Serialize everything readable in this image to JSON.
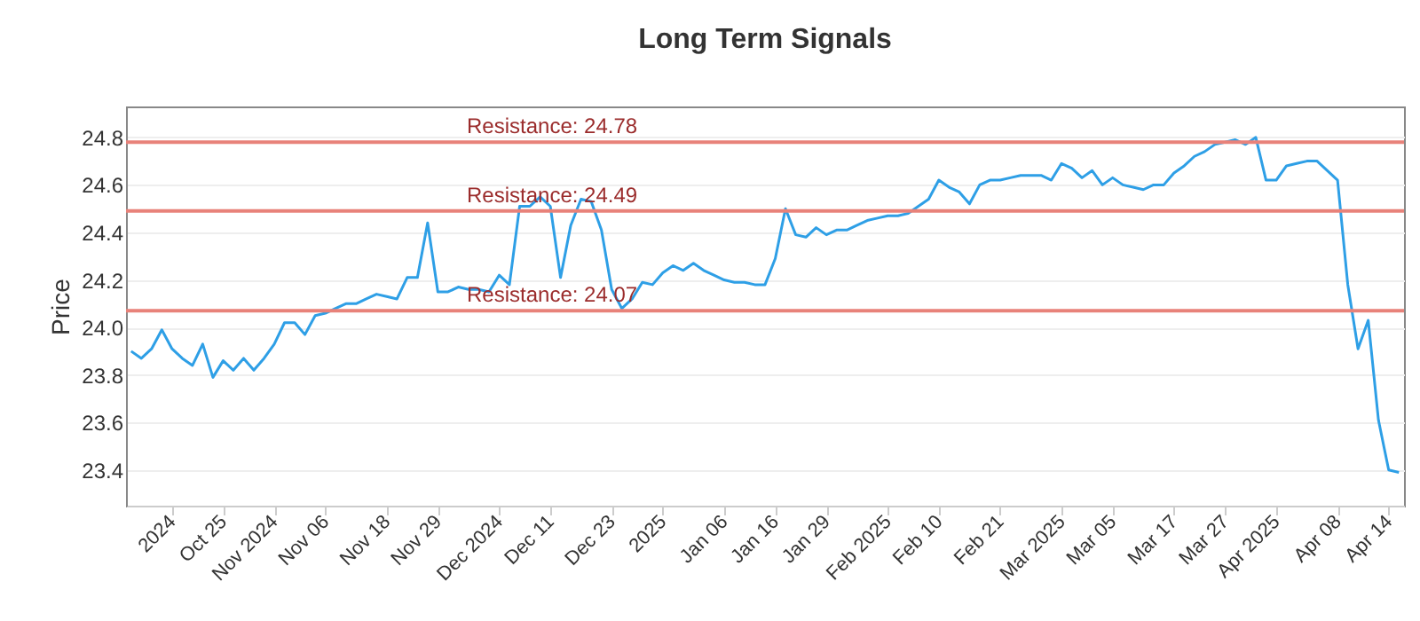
{
  "chart_data": {
    "type": "line",
    "title": "Long Term Signals",
    "ylabel": "Price",
    "categories": [
      null,
      null,
      null,
      null,
      "2024",
      null,
      null,
      null,
      null,
      "Oct 25",
      null,
      null,
      null,
      null,
      "Nov 2024",
      null,
      null,
      null,
      null,
      "Nov 06",
      null,
      null,
      null,
      null,
      null,
      "Nov 18",
      null,
      null,
      null,
      null,
      "Nov 29",
      null,
      null,
      null,
      null,
      null,
      "Dec 2024",
      null,
      null,
      null,
      null,
      "Dec 11",
      null,
      null,
      null,
      null,
      null,
      "Dec 23",
      null,
      null,
      null,
      null,
      "2025",
      null,
      null,
      null,
      null,
      null,
      "Jan 06",
      null,
      null,
      null,
      null,
      "Jan 16",
      null,
      null,
      null,
      null,
      "Jan 29",
      null,
      null,
      null,
      null,
      null,
      "Feb 2025",
      null,
      null,
      null,
      null,
      "Feb 10",
      null,
      null,
      null,
      null,
      null,
      "Feb 21",
      null,
      null,
      null,
      null,
      null,
      "Mar 2025",
      null,
      null,
      null,
      null,
      "Mar 05",
      null,
      null,
      null,
      null,
      null,
      "Mar 17",
      null,
      null,
      null,
      null,
      "Mar 27",
      null,
      null,
      null,
      null,
      "Apr 2025",
      null,
      null,
      null,
      null,
      null,
      "Apr 08",
      null,
      null,
      null,
      null,
      "Apr 14",
      null
    ],
    "series": [
      {
        "color": "#2e9fe6",
        "values": [
          23.9,
          23.87,
          23.91,
          23.99,
          23.91,
          23.87,
          23.84,
          23.93,
          23.79,
          23.86,
          23.82,
          23.87,
          23.82,
          23.87,
          23.93,
          24.02,
          24.02,
          23.97,
          24.05,
          24.06,
          24.08,
          24.1,
          24.1,
          24.12,
          24.14,
          24.13,
          24.12,
          24.21,
          24.21,
          24.44,
          24.15,
          24.15,
          24.17,
          24.16,
          24.16,
          24.15,
          24.22,
          24.18,
          24.51,
          24.51,
          24.55,
          24.51,
          24.21,
          24.43,
          24.54,
          24.53,
          24.41,
          24.16,
          24.08,
          24.12,
          24.19,
          24.18,
          24.23,
          24.26,
          24.24,
          24.27,
          24.24,
          24.22,
          24.2,
          24.19,
          24.19,
          24.18,
          24.18,
          24.29,
          24.5,
          24.39,
          24.38,
          24.42,
          24.39,
          24.41,
          24.41,
          24.43,
          24.45,
          24.46,
          24.47,
          24.47,
          24.48,
          24.51,
          24.54,
          24.62,
          24.59,
          24.57,
          24.52,
          24.6,
          24.62,
          24.62,
          24.63,
          24.64,
          24.64,
          24.64,
          24.62,
          24.69,
          24.67,
          24.63,
          24.66,
          24.6,
          24.63,
          24.6,
          24.59,
          24.58,
          24.6,
          24.6,
          24.65,
          24.68,
          24.72,
          24.74,
          24.77,
          24.78,
          24.79,
          24.77,
          24.8,
          24.62,
          24.62,
          24.68,
          24.69,
          24.7,
          24.7,
          24.66,
          24.62,
          24.18,
          23.91,
          24.03,
          23.61,
          23.4,
          23.39
        ]
      }
    ],
    "ylim": [
      23.25,
      24.93
    ],
    "yticks": [
      23.4,
      23.6,
      23.8,
      {
        "value": 24,
        "label": "24.0"
      },
      24.2,
      24.4,
      24.6,
      24.8
    ],
    "grid": "y",
    "ref_lines": [
      {
        "axis": "y",
        "value": 24.78,
        "label": "Resistance: 24.78",
        "color": "#e8827a"
      },
      {
        "axis": "y",
        "value": 24.49,
        "label": "Resistance: 24.49",
        "color": "#e8827a"
      },
      {
        "axis": "y",
        "value": 24.07,
        "label": "Resistance: 24.07",
        "color": "#e8827a"
      }
    ]
  }
}
